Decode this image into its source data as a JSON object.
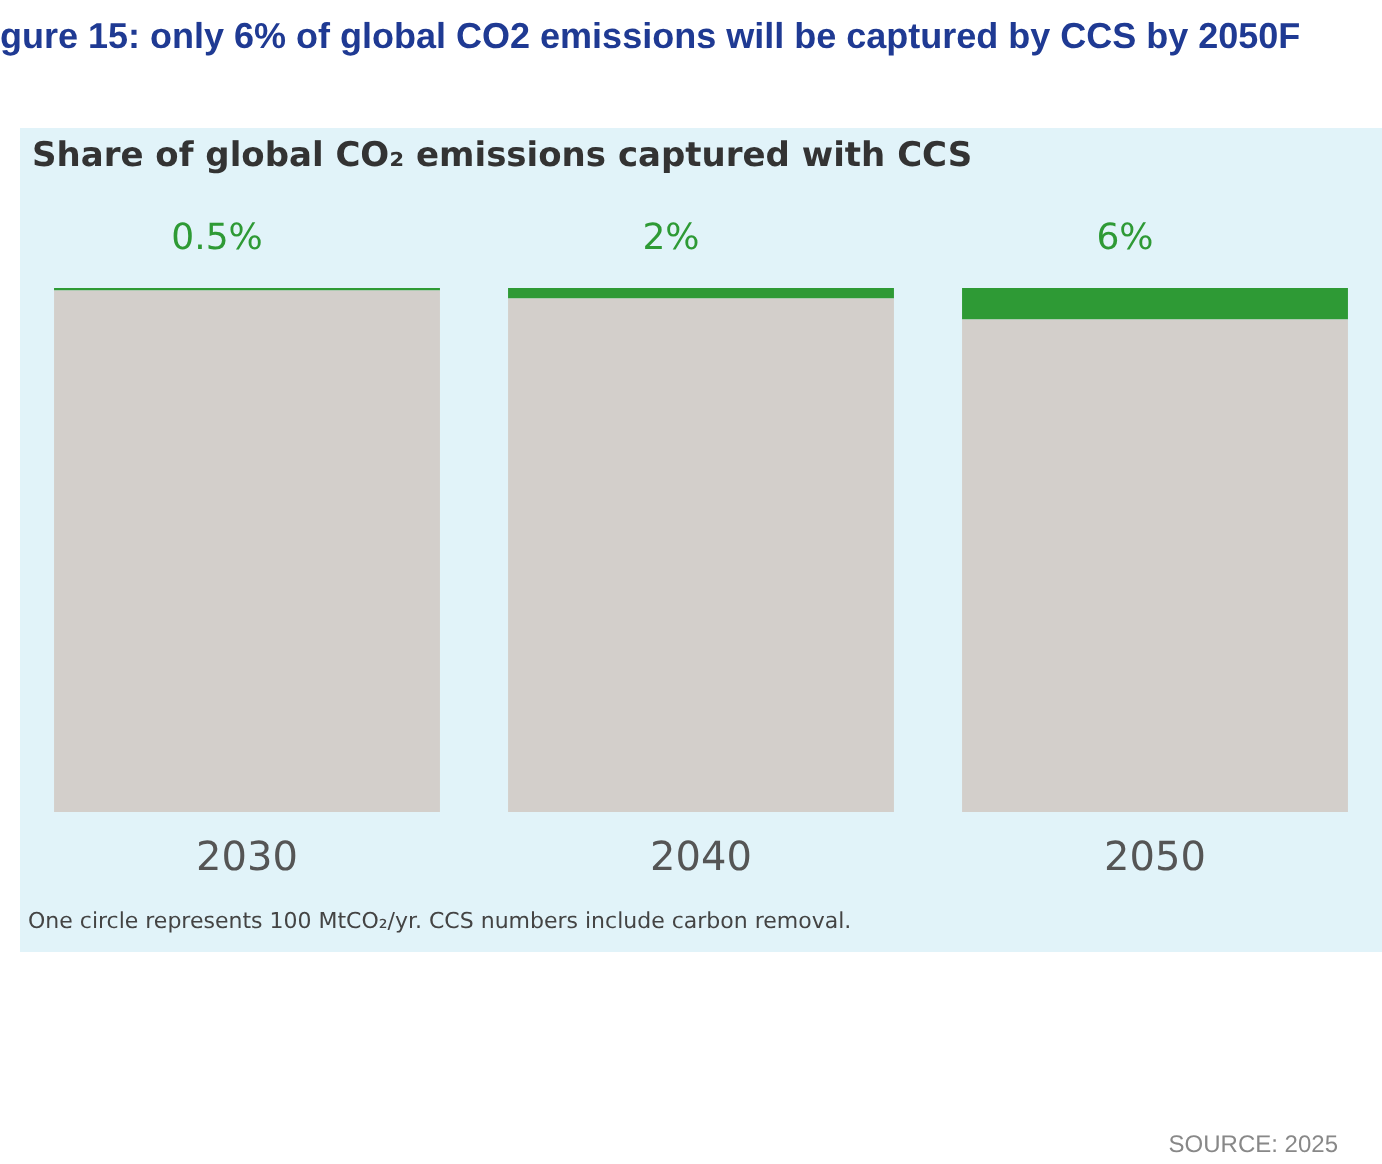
{
  "chart_data": {
    "type": "bar",
    "title": "gure 15: only 6% of global CO2 emissions will be captured by CCS by 2050F",
    "subtitle": "Share of global CO₂ emissions captured with CCS",
    "categories": [
      "2030",
      "2040",
      "2050"
    ],
    "stacked": true,
    "tick_labels": "x",
    "grid": false,
    "legend": false,
    "series": [
      {
        "color": "#d3cfcb",
        "values": [
          99.5,
          98,
          94
        ]
      },
      {
        "color": "#2e9a35",
        "values": [
          0.5,
          2,
          6
        ],
        "value_labels": [
          "0.5%",
          "2%",
          "6%"
        ]
      }
    ],
    "annotations": [
      "One circle represents 100 MtCO₂/yr. CCS numbers include carbon removal.",
      "SOURCE: 2025"
    ]
  }
}
